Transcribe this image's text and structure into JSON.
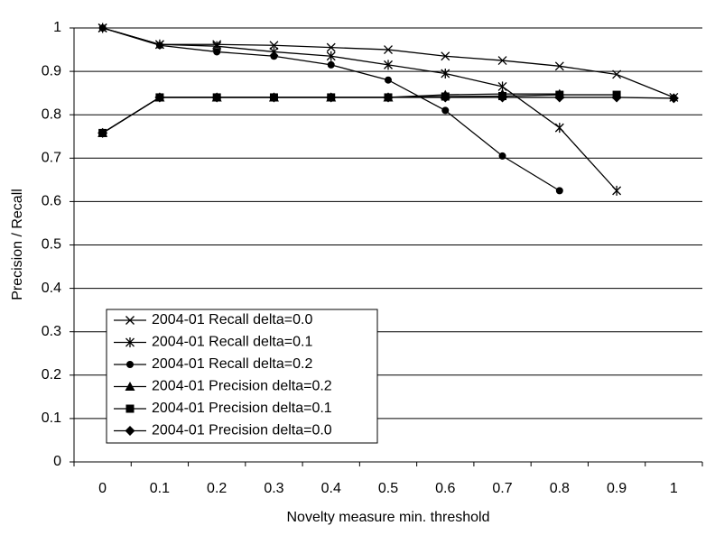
{
  "chart_data": {
    "type": "line",
    "x_label": "Novelty measure min. threshold",
    "y_label": "Precision / Recall",
    "categories": [
      "0",
      "0.1",
      "0.2",
      "0.3",
      "0.4",
      "0.5",
      "0.6",
      "0.7",
      "0.8",
      "0.9",
      "1"
    ],
    "ylim": [
      0,
      1
    ],
    "yticks": [
      0,
      0.1,
      0.2,
      0.3,
      0.4,
      0.5,
      0.6,
      0.7,
      0.8,
      0.9,
      1
    ],
    "grid": true,
    "legend": "lower-left",
    "series": [
      {
        "name": "2004-01 Recall delta=0.0",
        "color": "#000000",
        "marker": "x",
        "values": [
          1,
          0.962,
          0.962,
          0.96,
          0.955,
          0.95,
          0.935,
          0.925,
          0.912,
          0.893,
          0.84
        ]
      },
      {
        "name": "2004-01 Recall delta=0.1",
        "color": "#000000",
        "marker": "star",
        "values": [
          1,
          0.962,
          0.958,
          0.945,
          0.935,
          0.915,
          0.895,
          0.865,
          0.77,
          0.625,
          null
        ]
      },
      {
        "name": "2004-01 Recall delta=0.2",
        "color": "#000000",
        "marker": "circle",
        "values": [
          1,
          0.96,
          0.945,
          0.935,
          0.915,
          0.88,
          0.81,
          0.705,
          0.625,
          null,
          null
        ]
      },
      {
        "name": "2004-01 Precision delta=0.2",
        "color": "#000000",
        "marker": "triangle",
        "values": [
          0.758,
          0.84,
          0.84,
          0.84,
          0.84,
          0.84,
          0.846,
          0.848,
          0.848,
          null,
          null
        ]
      },
      {
        "name": "2004-01 Precision delta=0.1",
        "color": "#000000",
        "marker": "square",
        "values": [
          0.758,
          0.84,
          0.84,
          0.84,
          0.84,
          0.84,
          0.842,
          0.843,
          0.846,
          0.846,
          null
        ]
      },
      {
        "name": "2004-01 Precision delta=0.0",
        "color": "#000000",
        "marker": "diamond",
        "values": [
          0.758,
          0.84,
          0.84,
          0.84,
          0.84,
          0.84,
          0.84,
          0.84,
          0.84,
          0.84,
          0.838
        ]
      }
    ]
  }
}
